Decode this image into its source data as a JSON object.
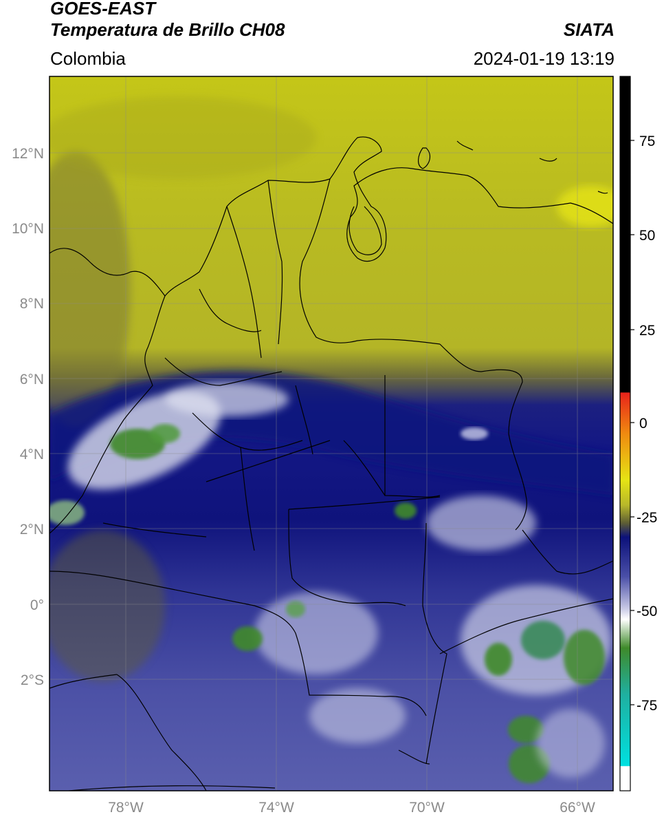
{
  "header": {
    "title_line1": "GOES-EAST",
    "title_line2": "Temperatura de Brillo CH08",
    "source": "SIATA",
    "region": "Colombia",
    "datetime": "2024-01-19 13:19"
  },
  "map": {
    "lat_labels": [
      "12°N",
      "10°N",
      "8°N",
      "6°N",
      "4°N",
      "2°N",
      "0°",
      "2°S"
    ],
    "lon_labels": [
      "78°W",
      "74°W",
      "70°W",
      "66°W"
    ]
  },
  "colorbar": {
    "tick_labels": [
      "75",
      "50",
      "25",
      "0",
      "-25",
      "-50",
      "-75"
    ],
    "colors": {
      "warm": "#000000",
      "red": "#e8231a",
      "orange": "#f08a10",
      "yellow": "#e6e414",
      "olive": "#5e5e34",
      "navy": "#0c117a",
      "blue": "#4a4fa8",
      "white": "#ffffff",
      "green": "#3f8a2a",
      "teal": "#1fb0a0",
      "cyan": "#00e0e0"
    }
  }
}
